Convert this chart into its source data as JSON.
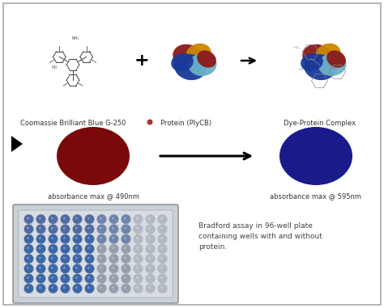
{
  "bg_color": "#ffffff",
  "border_color": "#aaaaaa",
  "circle_red_color": "#7a0a0a",
  "circle_blue_color": "#1a1a8a",
  "label_red": "absorbance max @ 490nm",
  "label_blue": "absorbance max @ 595nm",
  "label_coomassie": "Coomassie Brilliant Blue G-250",
  "label_protein": "Protein (PlyCB)",
  "label_complex": "Dye-Protein Complex",
  "bradford_text": "Bradford assay in 96-well plate\ncontaining wells with and without\nprotein.",
  "small_dot_red": "#aa3333",
  "well_rows": 8,
  "well_cols": 12
}
